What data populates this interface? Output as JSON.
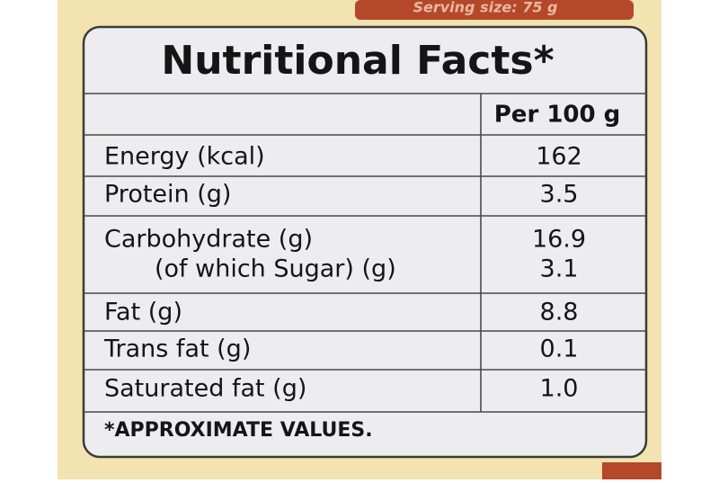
{
  "serving_size": "Serving size: 75 g",
  "title": "Nutritional Facts*",
  "table": {
    "header": "Per 100 g",
    "rows": [
      [
        "Energy (kcal)",
        "162"
      ],
      [
        "Protein (g)",
        "3.5"
      ],
      [
        "Carbohydrate (g)",
        "16.9"
      ],
      [
        "(of which Sugar) (g)",
        "3.1"
      ],
      [
        "Fat (g)",
        "8.8"
      ],
      [
        "Trans fat (g)",
        "0.1"
      ],
      [
        "Saturated fat (g)",
        "1.0"
      ]
    ]
  },
  "footnote": "*APPROXIMATE VALUES."
}
